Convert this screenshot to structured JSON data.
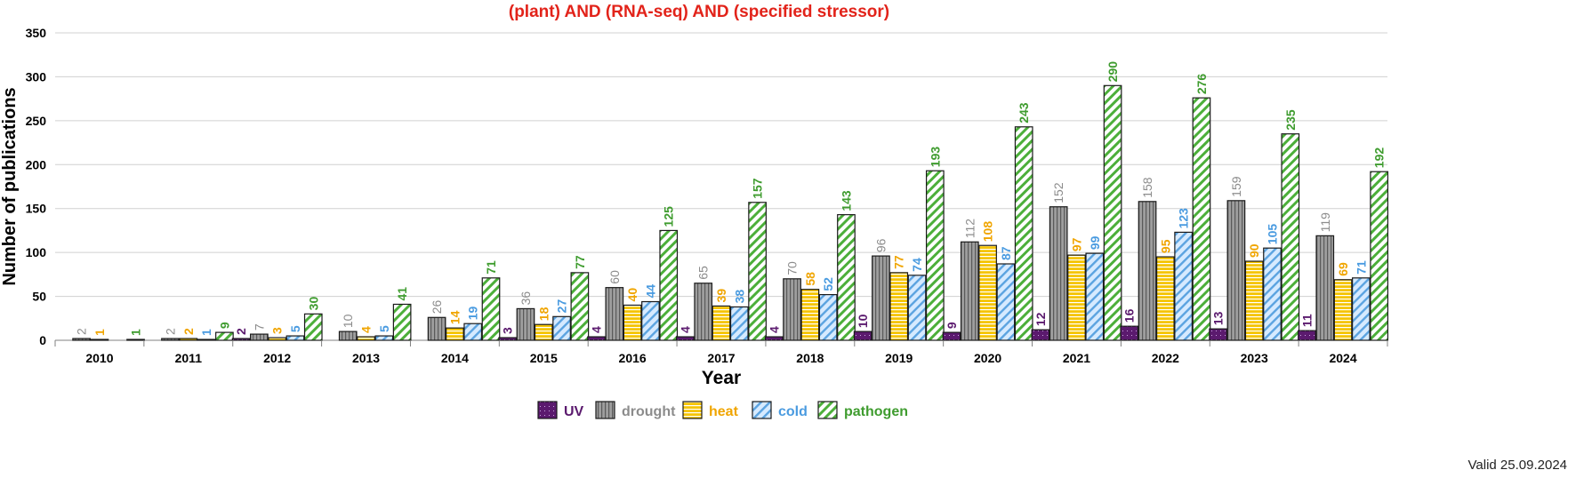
{
  "chart_data": {
    "type": "bar",
    "title": "(plant) AND (RNA-seq) AND (specified stressor)",
    "xlabel": "Year",
    "ylabel": "Number of publications",
    "ylim": [
      0,
      350
    ],
    "yticks": [
      0,
      50,
      100,
      150,
      200,
      250,
      300,
      350
    ],
    "grid": true,
    "legend_position": "bottom-center",
    "categories": [
      "2010",
      "2011",
      "2012",
      "2013",
      "2014",
      "2015",
      "2016",
      "2017",
      "2018",
      "2019",
      "2020",
      "2021",
      "2022",
      "2023",
      "2024"
    ],
    "series": [
      {
        "name": "UV",
        "color": "#5b1a6e",
        "label_color": "#5b1a6e",
        "values": [
          null,
          null,
          2,
          null,
          null,
          3,
          4,
          4,
          4,
          10,
          9,
          12,
          16,
          13,
          11
        ]
      },
      {
        "name": "drought",
        "color": "#9e9e9e",
        "label_color": "#8c8c8c",
        "values": [
          2,
          2,
          7,
          10,
          26,
          36,
          60,
          65,
          70,
          96,
          112,
          152,
          158,
          159,
          119
        ]
      },
      {
        "name": "heat",
        "color": "#f5c400",
        "label_color": "#f0a500",
        "values": [
          1,
          2,
          3,
          4,
          14,
          18,
          40,
          39,
          58,
          77,
          108,
          97,
          95,
          90,
          69
        ]
      },
      {
        "name": "cold",
        "color": "#5ba3e0",
        "label_color": "#4a9be0",
        "values": [
          null,
          1,
          5,
          5,
          19,
          27,
          44,
          38,
          52,
          74,
          87,
          99,
          123,
          105,
          71
        ]
      },
      {
        "name": "pathogen",
        "color": "#4caf3a",
        "label_color": "#3f9c2f",
        "values": [
          1,
          9,
          30,
          41,
          71,
          77,
          125,
          157,
          143,
          193,
          243,
          290,
          276,
          235,
          192
        ]
      }
    ]
  },
  "note": "Valid 25.09.2024"
}
